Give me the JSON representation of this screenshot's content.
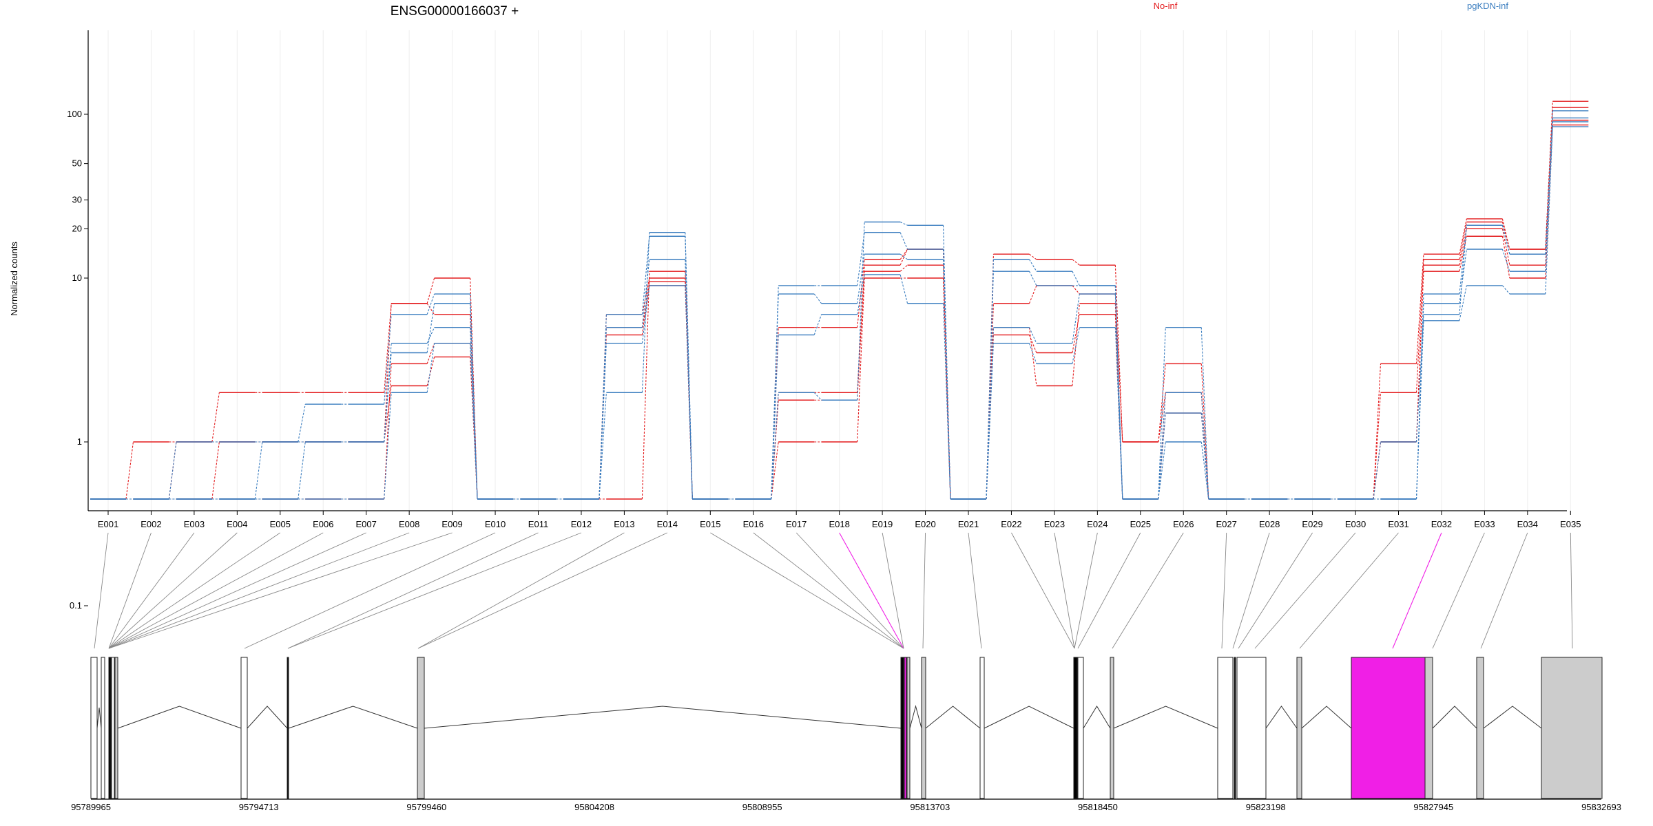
{
  "header": {
    "title": "ENSG00000166037 +",
    "legend": [
      {
        "label": "No-inf",
        "color": "#e31a1c"
      },
      {
        "label": "pgKDN-inf",
        "color": "#3a7dbf"
      }
    ]
  },
  "colors": {
    "red": "#e31a1c",
    "blue": "#3a7dbf",
    "highlight": "#f01fe6",
    "exon_grey": "#cccccc"
  },
  "chart_data": {
    "type": "line",
    "ylabel": "Normalized counts",
    "yscale": "log",
    "ylim": [
      0.07,
      130
    ],
    "yticks": [
      0.1,
      1,
      10,
      20,
      30,
      50,
      100
    ],
    "ytick_labels": [
      "0.1",
      "1",
      "10",
      "20",
      "30",
      "50",
      "100"
    ],
    "categories": [
      "E001",
      "E002",
      "E003",
      "E004",
      "E005",
      "E006",
      "E007",
      "E008",
      "E009",
      "E010",
      "E011",
      "E012",
      "E013",
      "E014",
      "E015",
      "E016",
      "E017",
      "E018",
      "E019",
      "E020",
      "E021",
      "E022",
      "E023",
      "E024",
      "E025",
      "E026",
      "E027",
      "E028",
      "E029",
      "E030",
      "E031",
      "E032",
      "E033",
      "E034",
      "E035"
    ],
    "series": [
      {
        "group": "No-inf",
        "color": "#e31a1c",
        "values": [
          0,
          1,
          1,
          2,
          2,
          2,
          2,
          7,
          10,
          0,
          0,
          0,
          0,
          11,
          0,
          0,
          5,
          5,
          13,
          15,
          0,
          14,
          13,
          12,
          1,
          3,
          0,
          0,
          0,
          0,
          3,
          14,
          23,
          15,
          120
        ]
      },
      {
        "group": "No-inf",
        "color": "#e31a1c",
        "values": [
          0,
          0,
          1,
          1,
          1,
          1,
          1,
          7,
          6,
          0,
          0,
          0,
          6,
          10,
          0,
          0,
          2,
          2,
          12,
          15,
          0,
          7,
          9,
          8,
          1,
          2,
          0,
          0,
          0,
          0,
          2,
          13,
          22,
          15,
          110
        ]
      },
      {
        "group": "No-inf",
        "color": "#e31a1c",
        "values": [
          0,
          0,
          0,
          1,
          1,
          1,
          1,
          2.2,
          3.3,
          0,
          0,
          0,
          4.5,
          9.5,
          0,
          0,
          1,
          1,
          10,
          10,
          0,
          4.5,
          3.5,
          6,
          0,
          1.5,
          0,
          0,
          0,
          0,
          1,
          11,
          18,
          10,
          92
        ]
      },
      {
        "group": "No-inf",
        "color": "#e31a1c",
        "values": [
          0,
          0,
          0,
          0,
          0,
          0,
          0,
          3,
          4,
          0,
          0,
          0,
          5,
          9,
          0,
          0,
          1.8,
          1.8,
          11,
          12,
          0,
          5,
          2.2,
          7,
          0,
          2,
          0,
          0,
          0,
          0,
          1,
          12,
          20,
          12,
          86
        ]
      },
      {
        "group": "pgKDN-inf",
        "color": "#3a7dbf",
        "values": [
          0,
          0,
          0,
          0,
          1,
          1.7,
          1.7,
          6,
          8,
          0,
          0,
          0,
          2,
          19,
          0,
          0,
          2,
          1.8,
          22,
          21,
          0,
          13,
          11,
          9,
          0,
          5,
          0,
          0,
          0,
          0,
          0,
          8,
          21,
          14,
          105
        ]
      },
      {
        "group": "pgKDN-inf",
        "color": "#3a7dbf",
        "values": [
          0,
          0,
          1,
          1,
          1,
          1,
          1,
          3.5,
          7,
          0,
          0,
          0,
          6,
          18,
          0,
          0,
          9,
          9,
          19,
          15,
          0,
          11,
          9,
          9,
          0,
          2,
          0,
          0,
          0,
          0,
          1,
          6,
          21,
          14,
          95
        ]
      },
      {
        "group": "pgKDN-inf",
        "color": "#3a7dbf",
        "values": [
          0,
          0,
          0,
          0,
          0,
          1,
          1,
          4,
          5,
          0,
          0,
          0,
          5,
          13,
          0,
          0,
          8,
          7,
          14,
          13,
          0,
          5,
          4,
          8,
          0,
          1,
          0,
          0,
          0,
          0,
          0,
          7,
          15,
          11,
          90
        ]
      },
      {
        "group": "pgKDN-inf",
        "color": "#3a7dbf",
        "values": [
          0,
          0,
          0,
          0,
          0,
          0,
          0,
          2,
          4,
          0,
          0,
          0,
          4,
          9,
          0,
          0,
          4.5,
          6,
          10.5,
          7,
          0,
          4,
          3,
          5,
          0,
          1.5,
          0,
          0,
          0,
          0,
          0,
          5.5,
          9,
          8,
          84
        ]
      }
    ],
    "gene_model": {
      "axis_ticks": [
        "95789965",
        "95794713",
        "95799460",
        "95804208",
        "95808955",
        "95813703",
        "95818450",
        "95823198",
        "95827945",
        "95832693"
      ],
      "axis_range": [
        95789965,
        95832693
      ]
    }
  }
}
